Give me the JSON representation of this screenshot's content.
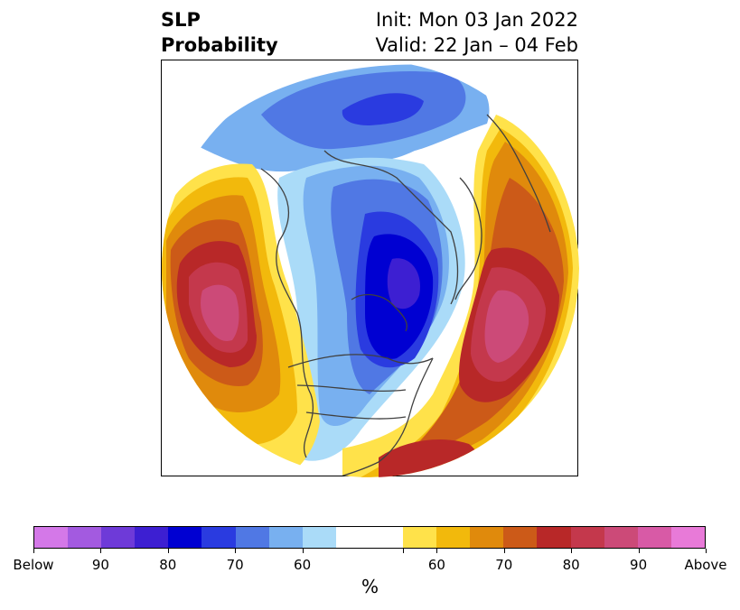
{
  "header": {
    "title_line1": "SLP",
    "title_line2": "Probability",
    "init_text": "Init: Mon 03 Jan 2022",
    "valid_text": "Valid: 22 Jan – 04 Feb"
  },
  "map": {
    "projection": "north-polar",
    "coastline_color": "#404040",
    "ocean_color": "#ffffff"
  },
  "colorbar": {
    "unit": "%",
    "segments": [
      "#d478e8",
      "#a35ae0",
      "#6e3ad8",
      "#3d1fd2",
      "#0000d2",
      "#2a3be0",
      "#5078e4",
      "#78b0f0",
      "#aadbf8",
      "#ffffff",
      "#ffffff",
      "#ffe24a",
      "#f2b90c",
      "#e08a0c",
      "#cc5a18",
      "#b82828",
      "#c4384c",
      "#cc4a78",
      "#d85aa6",
      "#e87ad8"
    ],
    "ticks": [
      {
        "label": "Below",
        "index": 0
      },
      {
        "label": "90",
        "index": 2
      },
      {
        "label": "80",
        "index": 4
      },
      {
        "label": "70",
        "index": 6
      },
      {
        "label": "60",
        "index": 8
      },
      {
        "label": "",
        "index": 11
      },
      {
        "label": "60",
        "index": 12
      },
      {
        "label": "70",
        "index": 14
      },
      {
        "label": "80",
        "index": 16
      },
      {
        "label": "90",
        "index": 18
      },
      {
        "label": "Above",
        "index": 20
      }
    ]
  }
}
